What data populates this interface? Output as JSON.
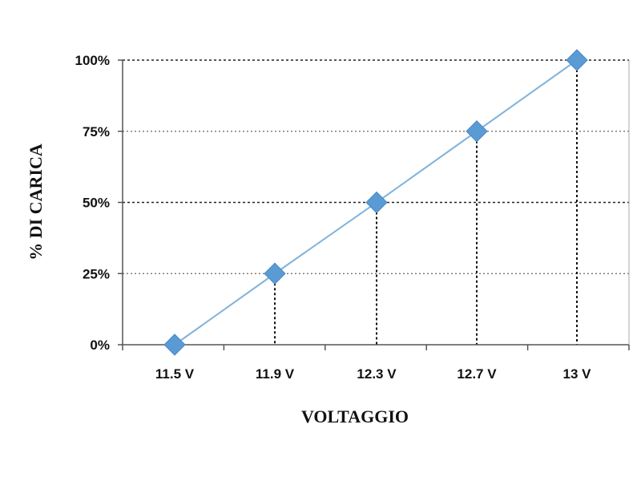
{
  "chart_data": {
    "type": "line",
    "categories": [
      "11.5 V",
      "11.9 V",
      "12.3 V",
      "12.7 V",
      "13 V"
    ],
    "series": [
      {
        "values": [
          0,
          25,
          50,
          75,
          100
        ]
      }
    ],
    "y_ticks": [
      "0%",
      "25%",
      "50%",
      "75%",
      "100%"
    ],
    "xlabel": "VOLTAGGIO",
    "ylabel": "% DI CARICA",
    "ylim": [
      0,
      100
    ],
    "grid": "horizontal dotted",
    "drop_lines": true,
    "colors": {
      "line": "#7fb3dc",
      "marker": "#5b9bd5",
      "grid": "#666666",
      "axis": "#555555"
    }
  }
}
